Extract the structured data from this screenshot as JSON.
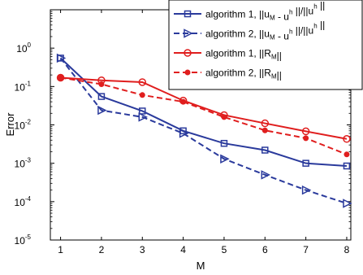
{
  "chart_data": {
    "type": "line",
    "xlabel": "M",
    "ylabel": "Error",
    "x": [
      1,
      2,
      3,
      4,
      5,
      6,
      7,
      8
    ],
    "xlim": [
      0.75,
      8.1
    ],
    "x_ticks": [
      1,
      2,
      3,
      4,
      5,
      6,
      7,
      8
    ],
    "y_scale": "log",
    "ylim": [
      1e-05,
      10
    ],
    "y_ticks": [
      {
        "exp": 0,
        "base": "10",
        "sup": "0"
      },
      {
        "exp": -1,
        "base": "10",
        "sup": "-1"
      },
      {
        "exp": -2,
        "base": "10",
        "sup": "-2"
      },
      {
        "exp": -3,
        "base": "10",
        "sup": "-3"
      },
      {
        "exp": -4,
        "base": "10",
        "sup": "-4"
      },
      {
        "exp": -5,
        "base": "10",
        "sup": "-5"
      }
    ],
    "grid": false,
    "legend_position": "top-right",
    "series": [
      {
        "name": "algorithm 1, ||u_M - u^h ||/||u^h ||",
        "legend_parts": [
          [
            "algorithm 1, ||u",
            "n"
          ],
          [
            "M",
            "sub"
          ],
          [
            " - u",
            "n"
          ],
          [
            "h",
            "sup"
          ],
          [
            " ||/||u",
            "n"
          ],
          [
            "h",
            "sup"
          ],
          [
            " ||",
            "n"
          ]
        ],
        "color": "#2a3a9c",
        "dash": "solid",
        "marker": "square-open",
        "values": [
          0.55,
          0.055,
          0.023,
          0.007,
          0.0033,
          0.0022,
          0.001,
          0.00085
        ]
      },
      {
        "name": "algorithm 2, ||u_M - u^h ||/||u^h ||",
        "legend_parts": [
          [
            "algorithm 2, ||u",
            "n"
          ],
          [
            "M",
            "sub"
          ],
          [
            " - u",
            "n"
          ],
          [
            "h",
            "sup"
          ],
          [
            " ||/||u",
            "n"
          ],
          [
            "h",
            "sup"
          ],
          [
            " ||",
            "n"
          ]
        ],
        "color": "#2a3a9c",
        "dash": "dashed",
        "marker": "triangle-right-open",
        "values": [
          0.55,
          0.024,
          0.016,
          0.006,
          0.0013,
          0.0005,
          0.0002,
          9e-05
        ]
      },
      {
        "name": "algorithm 1, ||R_M||",
        "legend_parts": [
          [
            "algorithm 1, ||R",
            "n"
          ],
          [
            "M",
            "sub"
          ],
          [
            "||",
            "n"
          ]
        ],
        "color": "#e01e1e",
        "dash": "solid",
        "marker": "circle-open",
        "values": [
          0.17,
          0.145,
          0.13,
          0.043,
          0.018,
          0.011,
          0.0068,
          0.0043
        ]
      },
      {
        "name": "algorithm 2, ||R_M||",
        "legend_parts": [
          [
            "algorithm 2, ||R",
            "n"
          ],
          [
            "M",
            "sub"
          ],
          [
            "||",
            "n"
          ]
        ],
        "color": "#e01e1e",
        "dash": "dashed",
        "marker": "dot",
        "values": [
          0.17,
          0.115,
          0.06,
          0.04,
          0.016,
          0.0072,
          0.0045,
          0.0017
        ]
      }
    ]
  }
}
